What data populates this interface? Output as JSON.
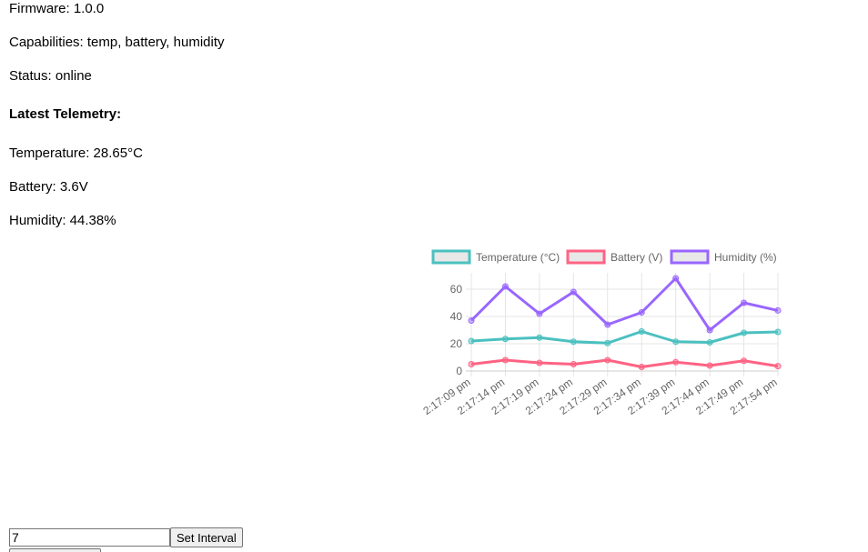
{
  "device_info": {
    "firmware": "Firmware: 1.0.0",
    "capabilities": "Capabilities: temp, battery, humidity",
    "status": "Status: online"
  },
  "telemetry": {
    "heading": "Latest Telemetry:",
    "temperature": "Temperature: 28.65°C",
    "battery": "Battery: 3.6V",
    "humidity": "Humidity: 44.38%"
  },
  "chart_data": {
    "type": "line",
    "x": [
      "2:17:09 pm",
      "2:17:14 pm",
      "2:17:19 pm",
      "2:17:24 pm",
      "2:17:29 pm",
      "2:17:34 pm",
      "2:17:39 pm",
      "2:17:44 pm",
      "2:17:49 pm",
      "2:17:54 pm"
    ],
    "yticks": [
      0,
      20,
      40,
      60
    ],
    "ylim": [
      0,
      68
    ],
    "grid": true,
    "legend_position": "top",
    "series": [
      {
        "name": "Temperature (°C)",
        "color": "#4bc0c0",
        "values": [
          22,
          23.5,
          24.5,
          21.5,
          20.5,
          29,
          21.5,
          21,
          28,
          28.65
        ]
      },
      {
        "name": "Battery (V)",
        "color": "#ff6384",
        "values": [
          5,
          8,
          6,
          5,
          8,
          3,
          6.5,
          4,
          7.5,
          3.6
        ]
      },
      {
        "name": "Humidity (%)",
        "color": "#9966ff",
        "values": [
          37,
          62,
          42,
          58,
          34,
          43,
          68,
          30,
          50,
          44.38
        ]
      }
    ]
  },
  "interval": {
    "value": "7",
    "button_label": "Set Interval"
  }
}
